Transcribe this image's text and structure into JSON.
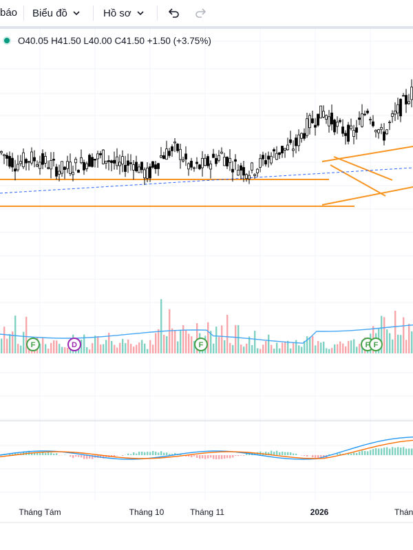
{
  "toolbar": {
    "alert_label": "báo",
    "chart_type_label": "Biểu đồ",
    "profile_label": "Hồ sơ"
  },
  "legend": {
    "open": "O40.05",
    "high": "H41.50",
    "low": "L40.00",
    "close": "C41.50",
    "change": "+1.50 (+3.75%)",
    "status_color": "#089981"
  },
  "colors": {
    "up": "#089981",
    "down": "#000000",
    "vol_up": "#7fd1c3",
    "vol_down": "#f7a5a9",
    "trend": "#f7931e",
    "ma_line": "#2962ff",
    "macd": "#2196f3",
    "signal": "#ff6d00"
  },
  "chart_data": {
    "type": "candlestick",
    "x_labels": [
      "Tháng Tám",
      "Tháng 10",
      "Tháng 11",
      "2026",
      "Tháng"
    ],
    "price_range": [
      33.6,
      46.5
    ],
    "mid_price": 40.1,
    "events": [
      "F",
      "D",
      "F",
      "F",
      "F"
    ],
    "base_trend": [
      40.7,
      40.1,
      40.4,
      40.2,
      39.8,
      40.0,
      40.3,
      40.5,
      40.0,
      40.2,
      39.5,
      40.6,
      40.9,
      39.8,
      40.1,
      40.6,
      40.0,
      39.7,
      40.3,
      40.8,
      41.0,
      42.2,
      42.8,
      42.0,
      41.6,
      43.0,
      41.5,
      42.8,
      43.8
    ],
    "volume_heights": [
      22,
      34,
      18,
      40,
      28,
      72,
      20,
      12,
      30,
      44,
      16,
      10,
      14,
      22,
      18,
      26,
      12,
      9,
      11,
      15,
      20,
      13,
      10,
      12,
      8,
      16,
      22,
      14,
      10,
      18,
      24,
      12,
      9,
      14,
      20,
      30,
      18,
      12,
      16,
      26,
      14,
      10,
      8,
      12,
      18,
      22,
      15,
      11,
      9,
      13,
      16,
      20,
      12,
      10,
      14,
      18,
      24,
      36,
      58,
      40,
      30,
      62,
      44,
      28,
      22,
      30,
      52,
      38,
      26,
      40,
      22,
      46,
      30,
      20,
      26,
      34,
      28
    ]
  }
}
